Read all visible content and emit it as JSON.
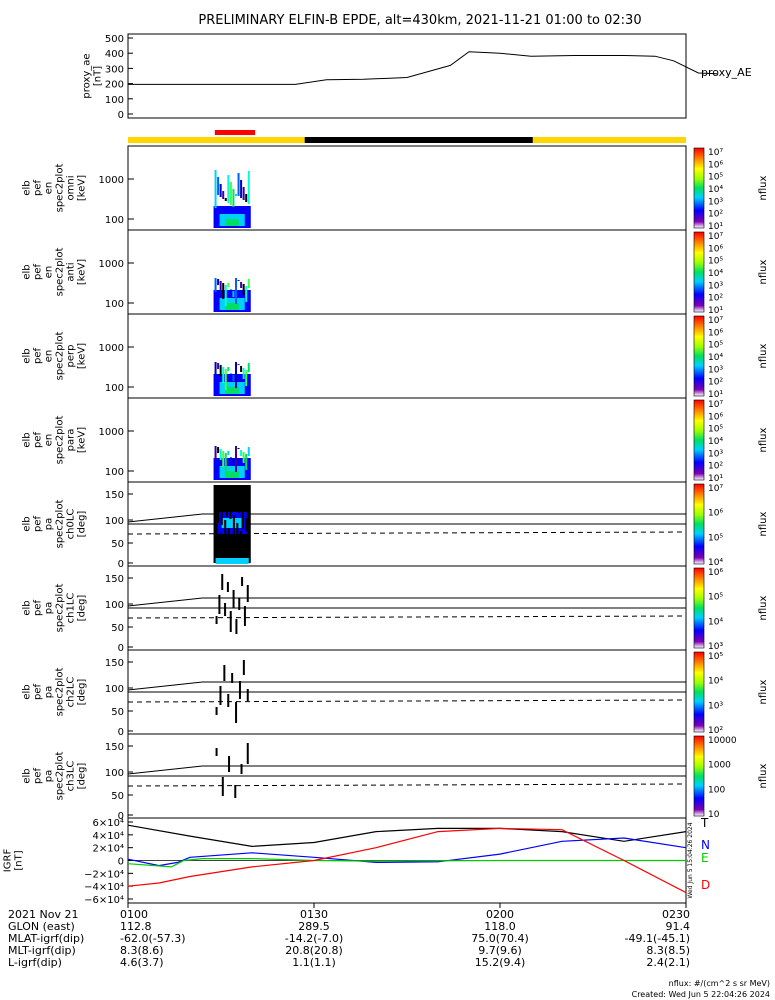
{
  "title": "PRELIMINARY ELFIN-B EPDE, alt=430km, 2021-11-21 01:00 to 02:30",
  "colors": {
    "state_yellow": "#ffd700",
    "state_black": "#000000",
    "state_red": "#ff0000",
    "T": "#000000",
    "N": "#0000ff",
    "E": "#00cc00",
    "D": "#ff0000"
  },
  "chart_data": [
    {
      "type": "line",
      "panel": "proxy_ae",
      "ylabel": "proxy_ae [nT]",
      "right_label": "proxy_AE",
      "yticks": [
        "500",
        "400",
        "300",
        "200",
        "100",
        "0"
      ],
      "ylim": [
        0,
        500
      ],
      "x": [
        0,
        10,
        20,
        27,
        32,
        38,
        45,
        52,
        55,
        60,
        65,
        72,
        80,
        85,
        88,
        92,
        95
      ],
      "y": [
        195,
        195,
        195,
        195,
        225,
        228,
        240,
        320,
        410,
        400,
        380,
        385,
        385,
        380,
        350,
        270,
        265
      ]
    },
    {
      "type": "heatmap",
      "panel": "omni",
      "ylabel": "elb pef en spec2plot omni [keV]",
      "yticks": [
        "1000",
        "100"
      ],
      "cbar_ticks": [
        "10⁷",
        "10⁶",
        "10⁵",
        "10⁴",
        "10³",
        "10²",
        "10¹"
      ],
      "cbar_label": "nflux"
    },
    {
      "type": "heatmap",
      "panel": "anti",
      "ylabel": "elb pef en spec2plot anti [keV]",
      "yticks": [
        "1000",
        "100"
      ],
      "cbar_ticks": [
        "10⁷",
        "10⁶",
        "10⁵",
        "10⁴",
        "10³",
        "10²",
        "10¹"
      ],
      "cbar_label": "nflux"
    },
    {
      "type": "heatmap",
      "panel": "perp",
      "ylabel": "elb pef en spec2plot perp [keV]",
      "yticks": [
        "1000",
        "100"
      ],
      "cbar_ticks": [
        "10⁷",
        "10⁶",
        "10⁵",
        "10⁴",
        "10³",
        "10²",
        "10¹"
      ],
      "cbar_label": "nflux"
    },
    {
      "type": "heatmap",
      "panel": "para",
      "ylabel": "elb pef en spec2plot para [keV]",
      "yticks": [
        "1000",
        "100"
      ],
      "cbar_ticks": [
        "10⁷",
        "10⁶",
        "10⁵",
        "10⁴",
        "10³",
        "10²",
        "10¹"
      ],
      "cbar_label": "nflux"
    },
    {
      "type": "heatmap",
      "panel": "ch0LC",
      "ylabel": "elb pef pa spec2plot ch0LC [deg]",
      "yticks": [
        "150",
        "100",
        "50",
        "0"
      ],
      "cbar_ticks": [
        "10⁷",
        "10⁶",
        "10⁵",
        "10⁴"
      ],
      "cbar_label": "nflux"
    },
    {
      "type": "heatmap",
      "panel": "ch1LC",
      "ylabel": "elb pef pa spec2plot ch1LC [deg]",
      "yticks": [
        "150",
        "100",
        "50",
        "0"
      ],
      "cbar_ticks": [
        "10⁶",
        "10⁵",
        "10⁴",
        "10³"
      ],
      "cbar_label": "nflux"
    },
    {
      "type": "heatmap",
      "panel": "ch2LC",
      "ylabel": "elb pef pa spec2plot ch2LC [deg]",
      "yticks": [
        "150",
        "100",
        "50",
        "0"
      ],
      "cbar_ticks": [
        "10⁵",
        "10⁴",
        "10³",
        "10²"
      ],
      "cbar_label": "nflux"
    },
    {
      "type": "heatmap",
      "panel": "ch3LC",
      "ylabel": "elb pef pa spec2plot ch3LC [deg]",
      "yticks": [
        "150",
        "100",
        "50",
        "0"
      ],
      "cbar_ticks": [
        "10000",
        "1000",
        "100",
        "10"
      ],
      "cbar_label": "nflux"
    },
    {
      "type": "line",
      "panel": "IGRF",
      "ylabel": "IGRF [nT]",
      "yticks": [
        "6×10⁴",
        "4×10⁴",
        "2×10⁴",
        "0",
        "−2×10⁴",
        "−4×10⁴",
        "−6×10⁴"
      ],
      "ylim": [
        -60000,
        60000
      ],
      "series": [
        {
          "name": "T",
          "x": [
            0,
            10,
            20,
            30,
            40,
            50,
            60,
            70,
            80,
            90
          ],
          "y": [
            55000,
            38000,
            22000,
            28000,
            45000,
            50000,
            50000,
            45000,
            30000,
            45000
          ]
        },
        {
          "name": "N",
          "x": [
            0,
            5,
            8,
            10,
            20,
            30,
            40,
            50,
            60,
            70,
            80,
            90
          ],
          "y": [
            2000,
            -8000,
            -3000,
            5000,
            12000,
            5000,
            -3000,
            -2000,
            10000,
            30000,
            35000,
            20000
          ]
        },
        {
          "name": "E",
          "x": [
            0,
            7,
            9,
            12,
            20,
            30,
            40,
            50,
            60,
            70,
            80,
            90
          ],
          "y": [
            -5000,
            -10000,
            0,
            3000,
            3000,
            0,
            -1000,
            -500,
            0,
            0,
            0,
            0
          ]
        },
        {
          "name": "D",
          "x": [
            0,
            5,
            10,
            20,
            30,
            40,
            50,
            60,
            70,
            80,
            90
          ],
          "y": [
            -40000,
            -35000,
            -25000,
            -10000,
            0,
            20000,
            45000,
            50000,
            48000,
            0,
            -50000
          ]
        }
      ]
    }
  ],
  "xaxis": {
    "row_labels": [
      "2021 Nov 21",
      "GLON (east)",
      "MLAT-igrf(dip)",
      "MLT-igrf(dip)",
      "L-igrf(dip)"
    ],
    "columns": [
      [
        "0100",
        "112.8",
        "-62.0(-57.3)",
        "8.3(8.6)",
        "4.6(3.7)"
      ],
      [
        "0130",
        "289.5",
        "-14.2(-7.0)",
        "20.8(20.8)",
        "1.1(1.1)"
      ],
      [
        "0200",
        "118.0",
        "75.0(70.4)",
        "9.7(9.6)",
        "15.2(9.4)"
      ],
      [
        "0230",
        "91.4",
        "-49.1(-45.1)",
        "8.3(8.5)",
        "2.4(2.1)"
      ]
    ]
  },
  "footer": {
    "units": "nflux: #/(cm^2 s sr MeV)",
    "created": "Created: Wed Jun  5 22:04:26 2024"
  },
  "side_stamp": "Wed Jun  5 15:04:26 2024"
}
